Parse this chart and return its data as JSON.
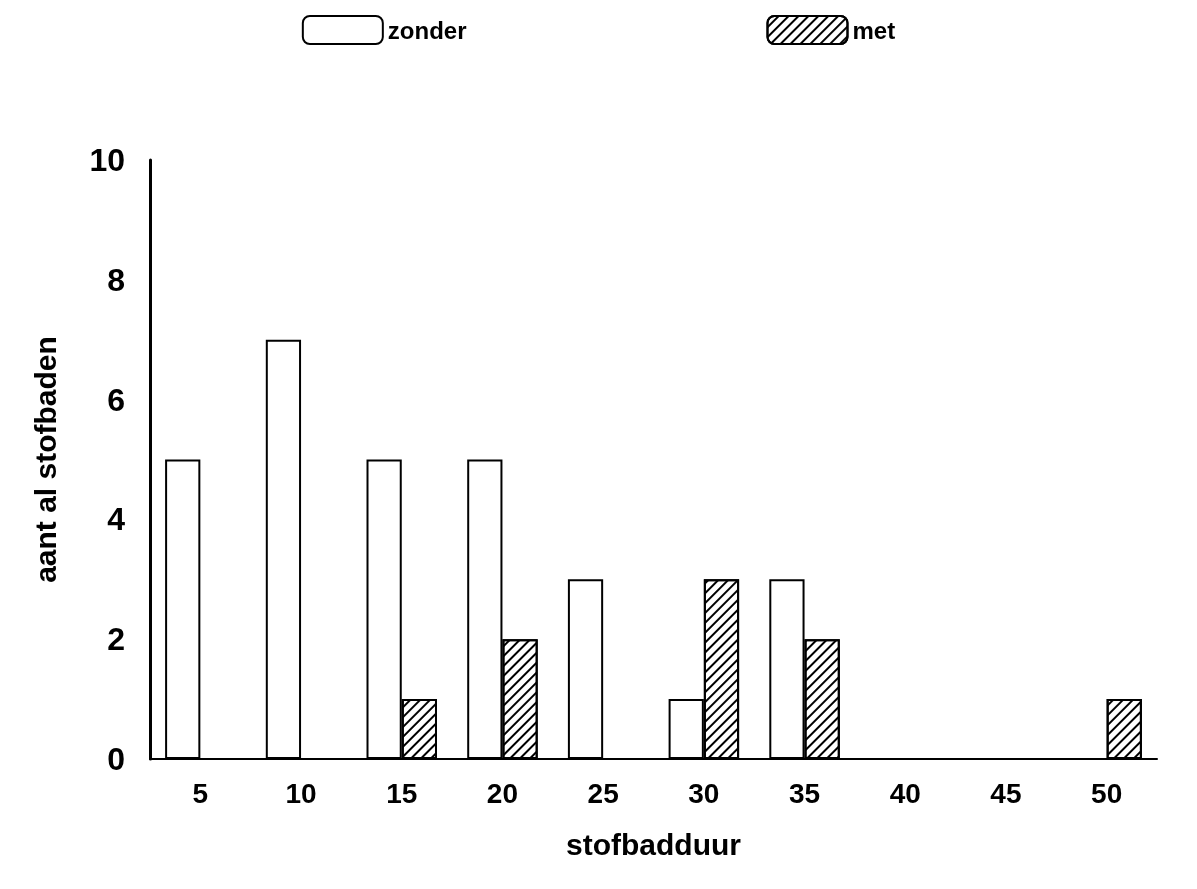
{
  "chart_data": {
    "type": "bar",
    "xlabel": "stofbadduur",
    "ylabel": "aant al stofbaden",
    "categories": [
      "5",
      "10",
      "15",
      "20",
      "25",
      "30",
      "35",
      "40",
      "45",
      "50"
    ],
    "series": [
      {
        "name": "zonder",
        "color": "#ffffff",
        "values": [
          5,
          7,
          5,
          5,
          3,
          1,
          3,
          0,
          0,
          0
        ]
      },
      {
        "name": "met",
        "color": "#ffffff",
        "values": [
          0,
          0,
          1,
          2,
          0,
          3,
          2,
          0,
          0,
          1
        ]
      }
    ],
    "ylim": [
      0,
      10
    ],
    "yticks": [
      0,
      2,
      4,
      6,
      8,
      10
    ],
    "grid": false,
    "legend": "top"
  }
}
